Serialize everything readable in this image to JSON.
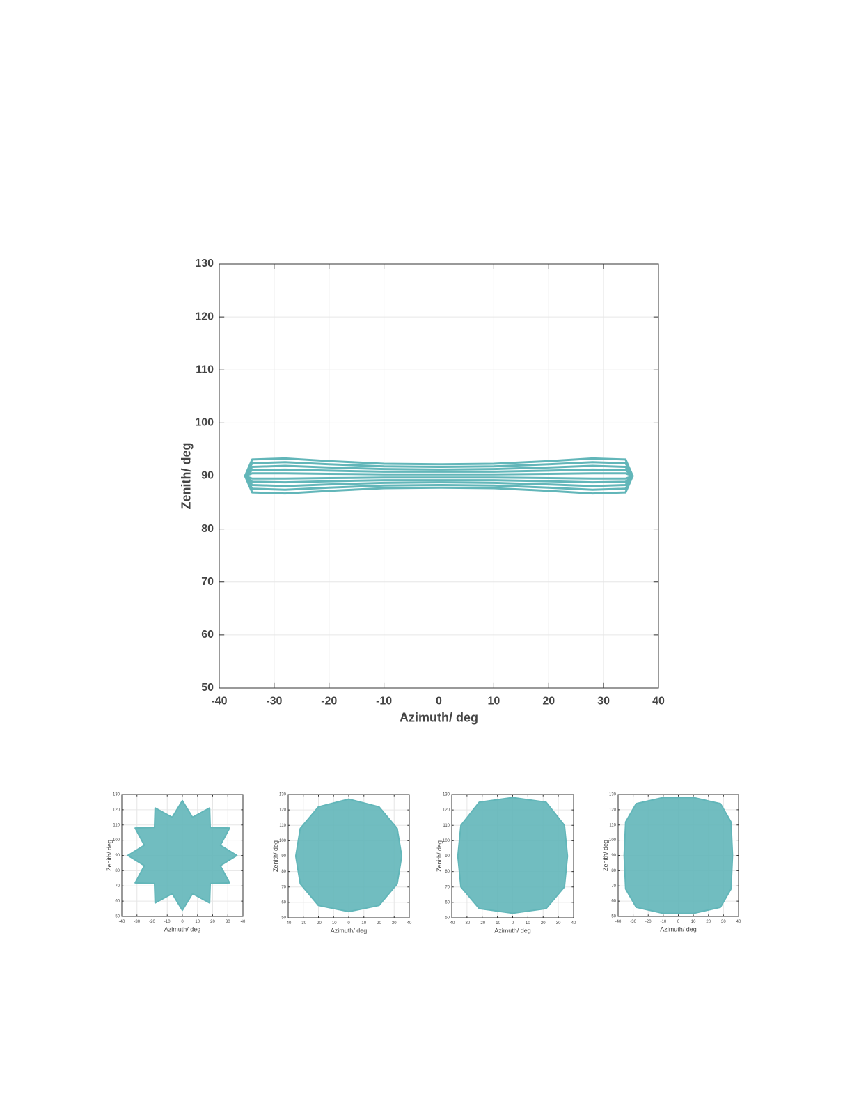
{
  "chart_data": [
    {
      "type": "line",
      "xlabel": "Azimuth/ deg",
      "ylabel": "Zenith/ deg",
      "xlim": [
        -40,
        40
      ],
      "ylim": [
        50,
        130
      ],
      "xticks": [
        -40,
        -30,
        -20,
        -10,
        0,
        10,
        20,
        30,
        40
      ],
      "yticks": [
        50,
        60,
        70,
        80,
        90,
        100,
        110,
        120,
        130
      ],
      "grid": true,
      "series": [
        {
          "color": "#62b6b9",
          "x": [
            -35.3,
            -34,
            -28,
            -20,
            -10,
            0,
            10,
            20,
            28,
            34,
            35.3,
            34,
            28,
            20,
            10,
            0,
            -10,
            -20,
            -28,
            -34,
            -35.3
          ],
          "values": [
            90,
            93.1,
            93.3,
            92.8,
            92.3,
            92.2,
            92.3,
            92.8,
            93.3,
            93.1,
            90,
            86.9,
            86.7,
            87.2,
            87.7,
            87.8,
            87.7,
            87.2,
            86.7,
            86.9,
            90
          ]
        },
        {
          "color": "#62b6b9",
          "x": [
            -35.3,
            -34,
            -28,
            -20,
            -10,
            0,
            10,
            20,
            28,
            34,
            35.3,
            34,
            28,
            20,
            10,
            0,
            -10,
            -20,
            -28,
            -34,
            -35.3
          ],
          "values": [
            90,
            92.4,
            92.6,
            92.2,
            91.8,
            91.7,
            91.8,
            92.2,
            92.6,
            92.4,
            90,
            87.6,
            87.4,
            87.8,
            88.2,
            88.3,
            88.2,
            87.8,
            87.4,
            87.6,
            90
          ]
        },
        {
          "color": "#62b6b9",
          "x": [
            -35.3,
            -34,
            -28,
            -20,
            -10,
            0,
            10,
            20,
            28,
            34,
            35.3,
            34,
            28,
            20,
            10,
            0,
            -10,
            -20,
            -28,
            -34,
            -35.3
          ],
          "values": [
            90,
            91.7,
            91.9,
            91.6,
            91.3,
            91.2,
            91.3,
            91.6,
            91.9,
            91.7,
            90,
            88.3,
            88.1,
            88.4,
            88.7,
            88.8,
            88.7,
            88.4,
            88.1,
            88.3,
            90
          ]
        },
        {
          "color": "#62b6b9",
          "x": [
            -35.3,
            -34,
            -28,
            -20,
            -10,
            0,
            10,
            20,
            28,
            34,
            35.3,
            34,
            28,
            20,
            10,
            0,
            -10,
            -20,
            -28,
            -34,
            -35.3
          ],
          "values": [
            90,
            91.1,
            91.2,
            91.0,
            90.8,
            90.8,
            90.8,
            91.0,
            91.2,
            91.1,
            90,
            88.9,
            88.8,
            89.0,
            89.2,
            89.2,
            89.2,
            89.0,
            88.8,
            88.9,
            90
          ]
        },
        {
          "color": "#62b6b9",
          "x": [
            -35.3,
            -34,
            -28,
            -20,
            -10,
            0,
            10,
            20,
            28,
            34,
            35.3,
            34,
            28,
            20,
            10,
            0,
            -10,
            -20,
            -28,
            -34,
            -35.3
          ],
          "values": [
            90,
            90.5,
            90.5,
            90.4,
            90.3,
            90.3,
            90.3,
            90.4,
            90.5,
            90.5,
            90,
            89.5,
            89.5,
            89.6,
            89.7,
            89.7,
            89.7,
            89.6,
            89.5,
            89.5,
            90
          ]
        }
      ]
    },
    {
      "type": "area",
      "xlabel": "Azimuth/ deg",
      "ylabel": "Zenith/ deg",
      "xlim": [
        -40,
        40
      ],
      "ylim": [
        50,
        130
      ],
      "xticks": [
        -40,
        -30,
        -20,
        -10,
        0,
        10,
        20,
        30,
        40
      ],
      "yticks": [
        50,
        60,
        70,
        80,
        90,
        100,
        110,
        120,
        130
      ],
      "grid": true,
      "series": [
        {
          "color": "#62b6b9",
          "x": [
            36,
            25.1,
            31.2,
            18.4,
            18,
            6.7,
            0,
            -6.7,
            -18,
            -18.4,
            -31.2,
            -25.1,
            -36,
            -25.1,
            -31.2,
            -18.4,
            -18,
            -6.7,
            0,
            6.7,
            18,
            18.4,
            31.2,
            25.1
          ],
          "values": [
            90,
            96.7,
            108,
            108.4,
            121.2,
            115.1,
            126,
            115.1,
            121.2,
            108.4,
            108,
            96.7,
            90,
            83.3,
            72,
            71.6,
            58.8,
            64.9,
            54,
            64.9,
            58.8,
            71.6,
            72,
            83.3
          ]
        }
      ]
    },
    {
      "type": "area",
      "xlabel": "Azimuth/ deg",
      "ylabel": "Zenith/ deg",
      "xlim": [
        -40,
        40
      ],
      "ylim": [
        50,
        130
      ],
      "xticks": [
        -40,
        -30,
        -20,
        -10,
        0,
        10,
        20,
        30,
        40
      ],
      "yticks": [
        50,
        60,
        70,
        80,
        90,
        100,
        110,
        120,
        130
      ],
      "grid": true,
      "series": [
        {
          "color": "#62b6b9",
          "x": [
            35,
            32,
            20,
            0,
            -20,
            -32,
            -35,
            -32,
            -20,
            0,
            20,
            32
          ],
          "values": [
            90,
            108,
            122,
            127,
            122,
            108,
            90,
            72,
            58,
            54,
            58,
            72
          ]
        }
      ]
    },
    {
      "type": "area",
      "xlabel": "Azimuth/ deg",
      "ylabel": "Zenith/ deg",
      "xlim": [
        -40,
        40
      ],
      "ylim": [
        50,
        130
      ],
      "xticks": [
        -40,
        -30,
        -20,
        -10,
        0,
        10,
        20,
        30,
        40
      ],
      "yticks": [
        50,
        60,
        70,
        80,
        90,
        100,
        110,
        120,
        130
      ],
      "grid": true,
      "series": [
        {
          "color": "#62b6b9",
          "x": [
            36,
            34,
            22,
            0,
            -22,
            -34,
            -36,
            -34,
            -22,
            0,
            22,
            34
          ],
          "values": [
            90,
            110,
            125,
            128,
            125,
            110,
            90,
            70,
            56,
            53,
            56,
            70
          ]
        }
      ]
    },
    {
      "type": "area",
      "xlabel": "Azimuth/ deg",
      "ylabel": "Zenith/ deg",
      "xlim": [
        -40,
        40
      ],
      "ylim": [
        50,
        130
      ],
      "xticks": [
        -40,
        -30,
        -20,
        -10,
        0,
        10,
        20,
        30,
        40
      ],
      "yticks": [
        50,
        60,
        70,
        80,
        90,
        100,
        110,
        120,
        130
      ],
      "grid": true,
      "series": [
        {
          "color": "#62b6b9",
          "x": [
            36,
            35,
            28,
            10,
            -10,
            -28,
            -35,
            -36,
            -35,
            -28,
            -10,
            10,
            28,
            35
          ],
          "values": [
            90,
            112,
            124,
            128,
            128,
            124,
            112,
            90,
            68,
            56,
            52,
            52,
            56,
            68
          ]
        }
      ]
    }
  ]
}
